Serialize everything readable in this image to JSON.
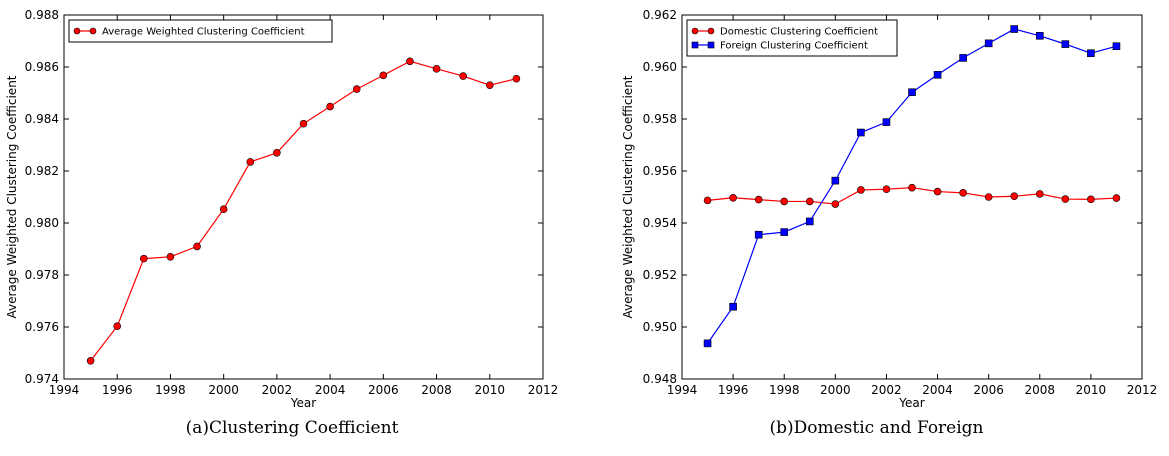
{
  "chart_data": [
    {
      "type": "line",
      "caption": "(a)Clustering Coefficient",
      "xlabel": "Year",
      "ylabel": "Average Weighted Clustering Coefficient",
      "xlim": [
        1994,
        2012
      ],
      "ylim": [
        0.974,
        0.988
      ],
      "xticks": [
        "1994",
        "1996",
        "1998",
        "2000",
        "2002",
        "2004",
        "2006",
        "2008",
        "2010",
        "2012"
      ],
      "yticks": [
        "0.974",
        "0.976",
        "0.978",
        "0.980",
        "0.982",
        "0.984",
        "0.986",
        "0.988"
      ],
      "legend_position": "top-left",
      "grid": false,
      "x": [
        1995,
        1996,
        1997,
        1998,
        1999,
        2000,
        2001,
        2002,
        2003,
        2004,
        2005,
        2006,
        2007,
        2008,
        2009,
        2010,
        2011
      ],
      "series": [
        {
          "name": "Average Weighted Clustering Coefficient",
          "color": "#ff0000",
          "marker": "circle",
          "values": [
            0.9747,
            0.97603,
            0.97863,
            0.9787,
            0.9791,
            0.98053,
            0.98235,
            0.9827,
            0.98382,
            0.98448,
            0.98515,
            0.98568,
            0.98622,
            0.98593,
            0.98565,
            0.9853,
            0.98555
          ]
        }
      ]
    },
    {
      "type": "line",
      "caption": "(b)Domestic and Foreign",
      "xlabel": "Year",
      "ylabel": "Average Weighted Clustering Coefficient",
      "xlim": [
        1994,
        2012
      ],
      "ylim": [
        0.948,
        0.962
      ],
      "xticks": [
        "1994",
        "1996",
        "1998",
        "2000",
        "2002",
        "2004",
        "2006",
        "2008",
        "2010",
        "2012"
      ],
      "yticks": [
        "0.948",
        "0.950",
        "0.952",
        "0.954",
        "0.956",
        "0.958",
        "0.960",
        "0.962"
      ],
      "legend_position": "top-left",
      "grid": false,
      "x": [
        1995,
        1996,
        1997,
        1998,
        1999,
        2000,
        2001,
        2002,
        2003,
        2004,
        2005,
        2006,
        2007,
        2008,
        2009,
        2010,
        2011
      ],
      "series": [
        {
          "name": "Domestic Clustering Coefficient",
          "color": "#ff0000",
          "marker": "circle",
          "values": [
            0.95487,
            0.95497,
            0.9549,
            0.95483,
            0.95483,
            0.95473,
            0.95527,
            0.9553,
            0.95536,
            0.95521,
            0.95516,
            0.955,
            0.95503,
            0.95512,
            0.95492,
            0.95491,
            0.95496
          ]
        },
        {
          "name": "Foreign Clustering Coefficient",
          "color": "#0000ff",
          "marker": "square",
          "values": [
            0.94937,
            0.95078,
            0.95355,
            0.95365,
            0.95406,
            0.95563,
            0.95748,
            0.95788,
            0.95903,
            0.9597,
            0.96035,
            0.96091,
            0.96146,
            0.9612,
            0.96088,
            0.96053,
            0.9608
          ]
        }
      ]
    }
  ]
}
